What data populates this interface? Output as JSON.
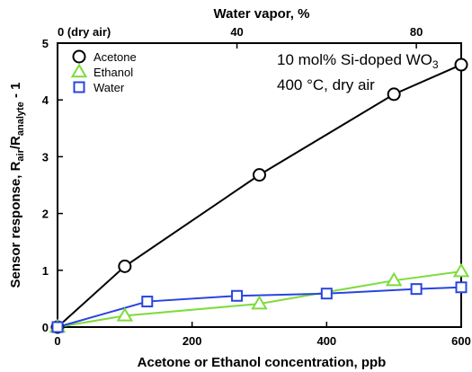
{
  "chart_data": {
    "type": "line",
    "xlabel": "Acetone or Ethanol concentration, ppb",
    "ylabel": {
      "prefix": "Sensor response, R",
      "sub1": "air",
      "mid": "/R",
      "sub2": "analyte",
      "suffix": " - 1"
    },
    "x_ticks": [
      "0",
      "200",
      "400",
      "600"
    ],
    "y_ticks": [
      "0",
      "1",
      "2",
      "3",
      "4",
      "5"
    ],
    "xlim": [
      0,
      600
    ],
    "ylim": [
      0,
      5
    ],
    "top_axis": {
      "label": "Water vapor, %",
      "ticks": [
        {
          "value": 0,
          "label": "0 (dry air)"
        },
        {
          "value": 40,
          "label": "40"
        },
        {
          "value": 80,
          "label": "80"
        }
      ],
      "xlim": [
        0,
        90
      ]
    },
    "annotation": {
      "line1_main": "10 mol% Si-doped WO",
      "line1_sub": "3",
      "line2": "400 °C, dry air"
    },
    "legend_position": "top-left",
    "series": [
      {
        "name": "Acetone",
        "marker": "circle",
        "color": "#000000",
        "axis": "bottom",
        "x": [
          0,
          100,
          300,
          500,
          600
        ],
        "y": [
          0,
          1.07,
          2.68,
          4.1,
          4.62
        ]
      },
      {
        "name": "Ethanol",
        "marker": "triangle",
        "color": "#7ddc3c",
        "axis": "bottom",
        "x": [
          0,
          100,
          300,
          500,
          600
        ],
        "y": [
          0,
          0.2,
          0.41,
          0.82,
          0.98
        ]
      },
      {
        "name": "Water",
        "marker": "square",
        "color": "#2844e0",
        "axis": "top",
        "x": [
          0,
          20,
          40,
          60,
          80,
          90
        ],
        "y": [
          0,
          0.45,
          0.55,
          0.59,
          0.67,
          0.7
        ]
      }
    ]
  }
}
